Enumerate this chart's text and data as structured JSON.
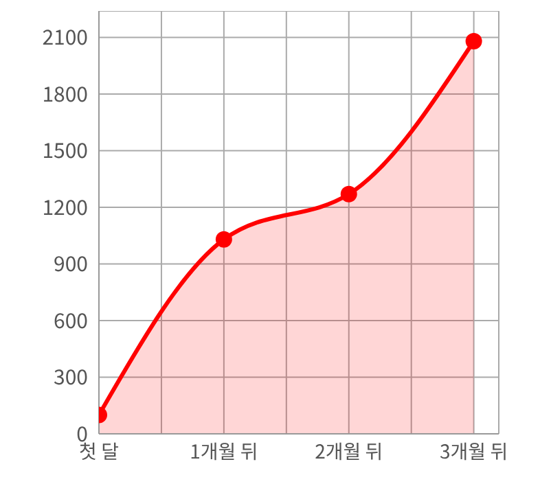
{
  "chart_data": {
    "type": "area",
    "x": [
      0,
      1,
      2,
      3
    ],
    "series": [
      {
        "color": "#ff0000",
        "values": [
          100,
          1030,
          1270,
          2080
        ]
      }
    ],
    "xlim": [
      0,
      3.2
    ],
    "xticks": [
      {
        "value": 0,
        "label": "첫 달"
      },
      {
        "value": 0.5,
        "label": null
      },
      {
        "value": 1,
        "label": "1개월 뒤"
      },
      {
        "value": 1.5,
        "label": null
      },
      {
        "value": 2,
        "label": "2개월 뒤"
      },
      {
        "value": 2.5,
        "label": null
      },
      {
        "value": 3,
        "label": "3개월 뒤"
      }
    ],
    "ylim": [
      0,
      2240
    ],
    "yticks": [
      0,
      300,
      600,
      900,
      1200,
      1500,
      1800,
      2100
    ],
    "grid": true,
    "marker": "circle"
  }
}
